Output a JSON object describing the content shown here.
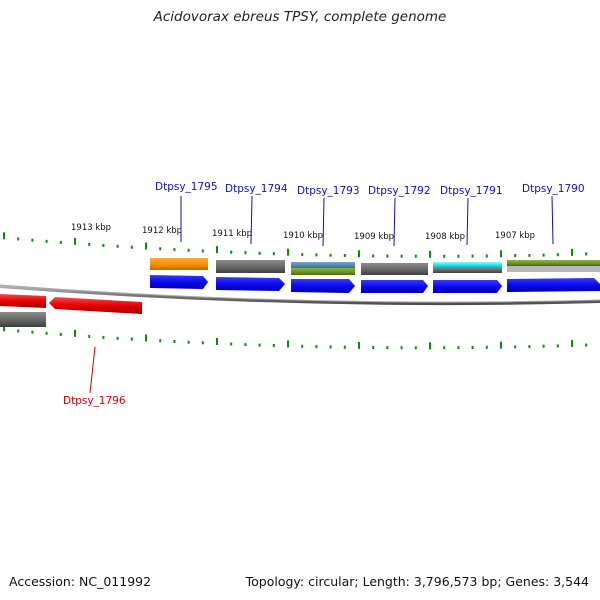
{
  "title": "Acidovorax ebreus TPSY, complete genome",
  "footer": {
    "accession": "Accession: NC_011992",
    "summary": "Topology: circular; Length: 3,796,573 bp; Genes: 3,544"
  },
  "tick_labels": [
    "1913 kbp",
    "1912 kbp",
    "1911 kbp",
    "1910 kbp",
    "1909 kbp",
    "1908 kbp",
    "1907 kbp"
  ],
  "gene_labels": [
    {
      "name": "Dtpsy_1795",
      "color": "#1010b0"
    },
    {
      "name": "Dtpsy_1794",
      "color": "#1010b0"
    },
    {
      "name": "Dtpsy_1793",
      "color": "#1010b0"
    },
    {
      "name": "Dtpsy_1792",
      "color": "#1010b0"
    },
    {
      "name": "Dtpsy_1791",
      "color": "#1010b0"
    },
    {
      "name": "Dtpsy_1790",
      "color": "#1010b0"
    },
    {
      "name": "Dtpsy_1796",
      "color": "#cc0000"
    }
  ],
  "colors": {
    "forward_cds": "#0a0af0",
    "reverse_cds": "#e50000",
    "backbone": "#8a8a8a",
    "ticks": "#118811",
    "cog_orange": "#f08c00",
    "cog_gray": "#6a6a6a",
    "cog_olive": "#6b8e23",
    "cog_steel": "#4f80b0",
    "cog_cyan": "#00e5f0"
  }
}
